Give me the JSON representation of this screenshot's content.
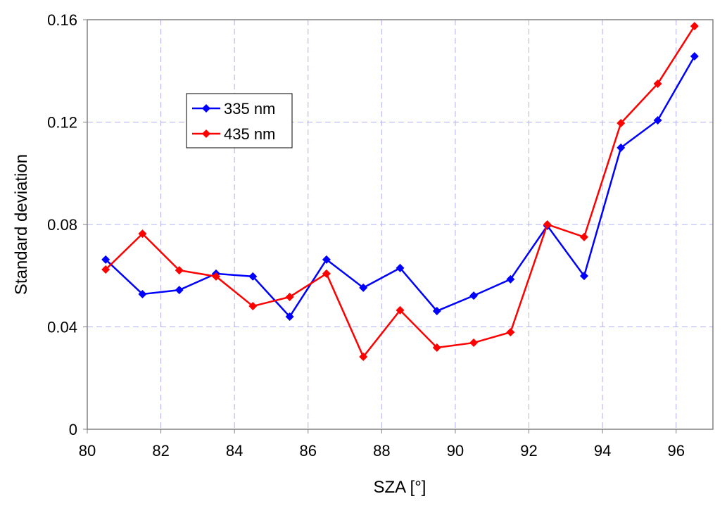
{
  "chart_data": {
    "type": "line",
    "title": "",
    "xlabel": "SZA [°]",
    "ylabel": "Standard deviation",
    "xlim": [
      80,
      97
    ],
    "ylim": [
      0,
      0.16
    ],
    "xticks": [
      80,
      82,
      84,
      86,
      88,
      90,
      92,
      94,
      96
    ],
    "xtick_labels": [
      "80",
      "82",
      "84",
      "86",
      "88",
      "90",
      "92",
      "94",
      "96"
    ],
    "yticks": [
      0,
      0.04,
      0.08,
      0.12,
      0.16
    ],
    "ytick_labels": [
      "0",
      "0.04",
      "0.08",
      "0.12",
      "0.16"
    ],
    "grid": true,
    "legend_position": "upper-left",
    "x": [
      80.5,
      81.5,
      82.5,
      83.5,
      84.5,
      85.5,
      86.5,
      87.5,
      88.5,
      89.5,
      90.5,
      91.5,
      92.5,
      93.5,
      94.5,
      95.5,
      96.5
    ],
    "series": [
      {
        "name": "335 nm",
        "color": "#0000ff",
        "marker": "diamond",
        "values": [
          0.0663,
          0.0528,
          0.0544,
          0.0608,
          0.0597,
          0.044,
          0.0663,
          0.0553,
          0.063,
          0.0462,
          0.0522,
          0.0586,
          0.0795,
          0.0599,
          0.11,
          0.1207,
          0.1457
        ]
      },
      {
        "name": "435 nm",
        "color": "#ff0000",
        "marker": "diamond",
        "values": [
          0.0624,
          0.0764,
          0.0621,
          0.0597,
          0.0481,
          0.0517,
          0.0608,
          0.0283,
          0.0465,
          0.0319,
          0.0338,
          0.0379,
          0.08,
          0.0751,
          0.1196,
          0.135,
          0.1575
        ]
      }
    ]
  }
}
